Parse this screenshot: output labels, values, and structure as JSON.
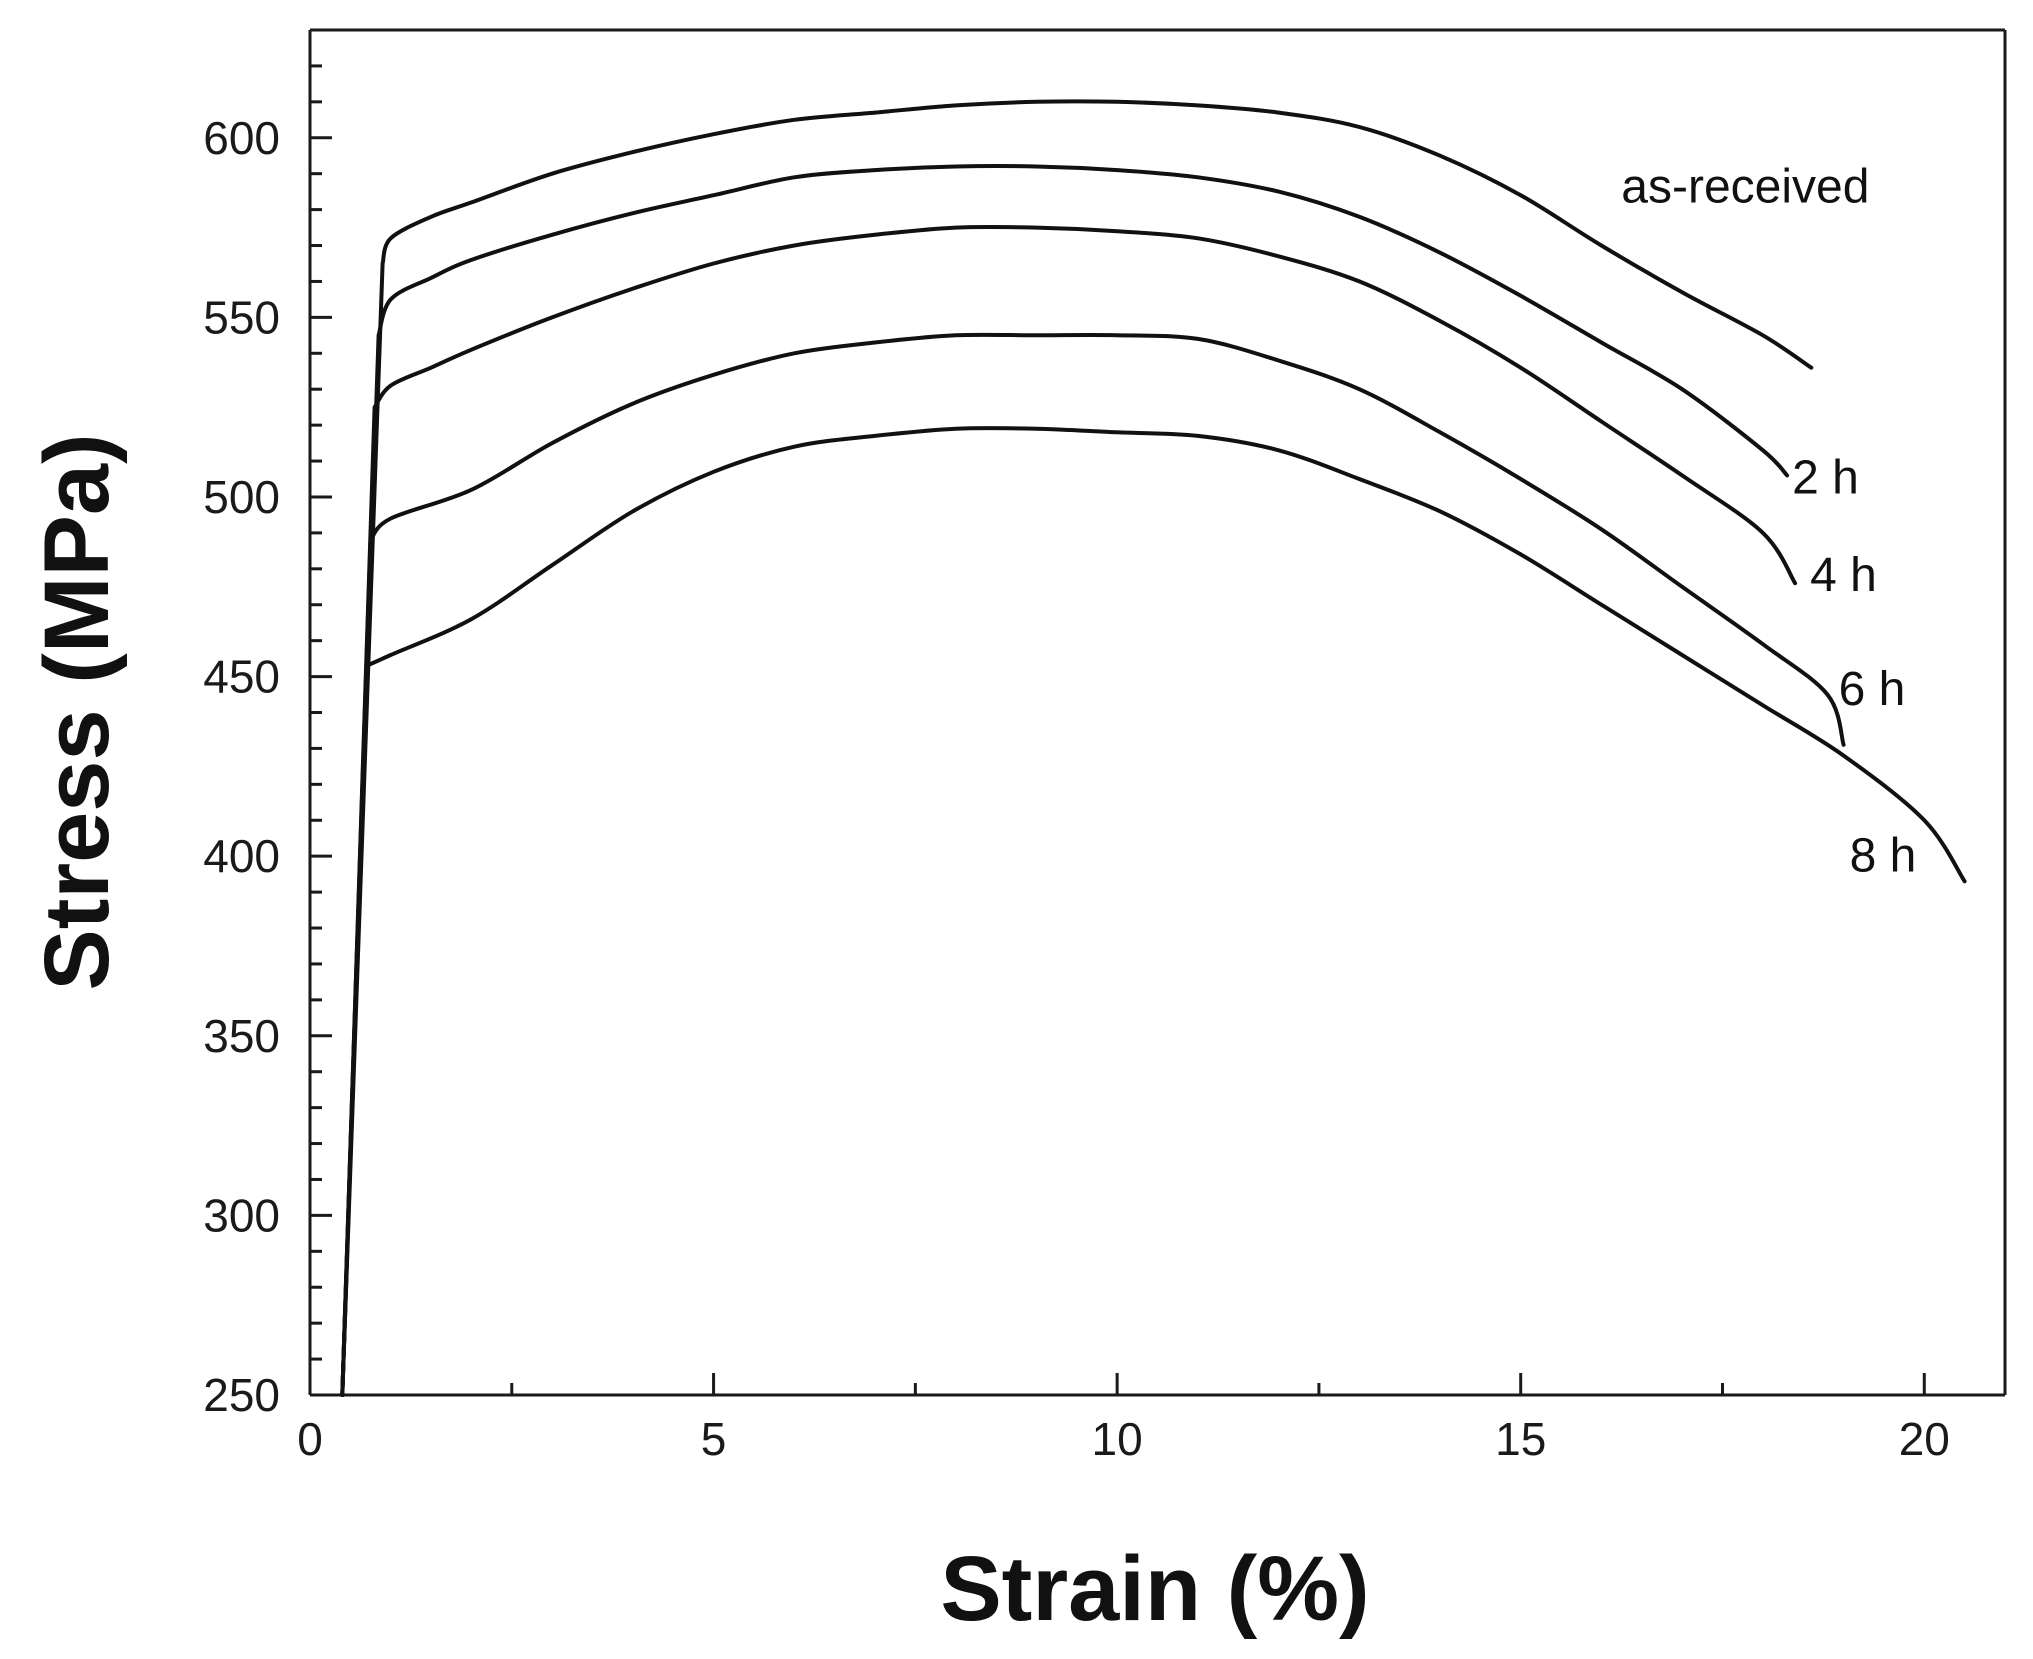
{
  "chart_data": {
    "type": "line",
    "title": "",
    "xlabel": "Strain (%)",
    "ylabel": "Stress (MPa)",
    "xlim": [
      0,
      21
    ],
    "ylim": [
      250,
      630
    ],
    "xticks": [
      0,
      5,
      10,
      15,
      20
    ],
    "yticks": [
      250,
      300,
      350,
      400,
      450,
      500,
      550,
      600
    ],
    "grid": false,
    "legend": "none",
    "series": [
      {
        "name": "as-received",
        "points": [
          [
            0.4,
            250
          ],
          [
            0.9,
            565
          ],
          [
            1.0,
            572
          ],
          [
            1.5,
            578
          ],
          [
            2,
            582
          ],
          [
            3,
            590
          ],
          [
            4,
            596
          ],
          [
            5,
            601
          ],
          [
            6,
            605
          ],
          [
            7,
            607
          ],
          [
            8,
            609
          ],
          [
            9,
            610
          ],
          [
            10,
            610
          ],
          [
            11,
            609
          ],
          [
            12,
            607
          ],
          [
            13,
            603
          ],
          [
            14,
            595
          ],
          [
            15,
            584
          ],
          [
            16,
            570
          ],
          [
            17,
            557
          ],
          [
            18,
            545
          ],
          [
            18.6,
            536
          ]
        ]
      },
      {
        "name": "2 h",
        "points": [
          [
            0.4,
            250
          ],
          [
            0.85,
            545
          ],
          [
            1.0,
            555
          ],
          [
            1.5,
            561
          ],
          [
            2,
            566
          ],
          [
            3,
            573
          ],
          [
            4,
            579
          ],
          [
            5,
            584
          ],
          [
            6,
            589
          ],
          [
            7,
            591
          ],
          [
            8,
            592
          ],
          [
            9,
            592
          ],
          [
            10,
            591
          ],
          [
            11,
            589
          ],
          [
            12,
            585
          ],
          [
            13,
            578
          ],
          [
            14,
            568
          ],
          [
            15,
            556
          ],
          [
            16,
            543
          ],
          [
            17,
            530
          ],
          [
            18,
            513
          ],
          [
            18.3,
            506
          ]
        ]
      },
      {
        "name": "4 h",
        "points": [
          [
            0.4,
            250
          ],
          [
            0.8,
            525
          ],
          [
            1.0,
            531
          ],
          [
            1.5,
            536
          ],
          [
            2,
            541
          ],
          [
            3,
            550
          ],
          [
            4,
            558
          ],
          [
            5,
            565
          ],
          [
            6,
            570
          ],
          [
            7,
            573
          ],
          [
            8,
            575
          ],
          [
            9,
            575
          ],
          [
            10,
            574
          ],
          [
            11,
            572
          ],
          [
            12,
            567
          ],
          [
            13,
            560
          ],
          [
            14,
            549
          ],
          [
            15,
            536
          ],
          [
            16,
            521
          ],
          [
            17,
            506
          ],
          [
            18,
            490
          ],
          [
            18.4,
            476
          ]
        ]
      },
      {
        "name": "6 h",
        "points": [
          [
            0.4,
            250
          ],
          [
            0.75,
            488
          ],
          [
            1.0,
            494
          ],
          [
            2,
            502
          ],
          [
            3,
            515
          ],
          [
            4,
            526
          ],
          [
            5,
            534
          ],
          [
            6,
            540
          ],
          [
            7,
            543
          ],
          [
            8,
            545
          ],
          [
            9,
            545
          ],
          [
            10,
            545
          ],
          [
            11,
            544
          ],
          [
            12,
            538
          ],
          [
            13,
            530
          ],
          [
            14,
            518
          ],
          [
            15,
            505
          ],
          [
            16,
            491
          ],
          [
            17,
            475
          ],
          [
            18,
            459
          ],
          [
            18.8,
            445
          ],
          [
            19.0,
            431
          ]
        ]
      },
      {
        "name": "8 h",
        "points": [
          [
            0.4,
            250
          ],
          [
            0.7,
            453
          ],
          [
            1.0,
            456
          ],
          [
            2,
            466
          ],
          [
            3,
            481
          ],
          [
            4,
            496
          ],
          [
            5,
            507
          ],
          [
            6,
            514
          ],
          [
            7,
            517
          ],
          [
            8,
            519
          ],
          [
            9,
            519
          ],
          [
            10,
            518
          ],
          [
            11,
            517
          ],
          [
            12,
            513
          ],
          [
            13,
            505
          ],
          [
            14,
            496
          ],
          [
            15,
            484
          ],
          [
            16,
            470
          ],
          [
            17,
            456
          ],
          [
            18,
            442
          ],
          [
            19,
            428
          ],
          [
            20,
            410
          ],
          [
            20.5,
            393
          ]
        ]
      }
    ]
  }
}
